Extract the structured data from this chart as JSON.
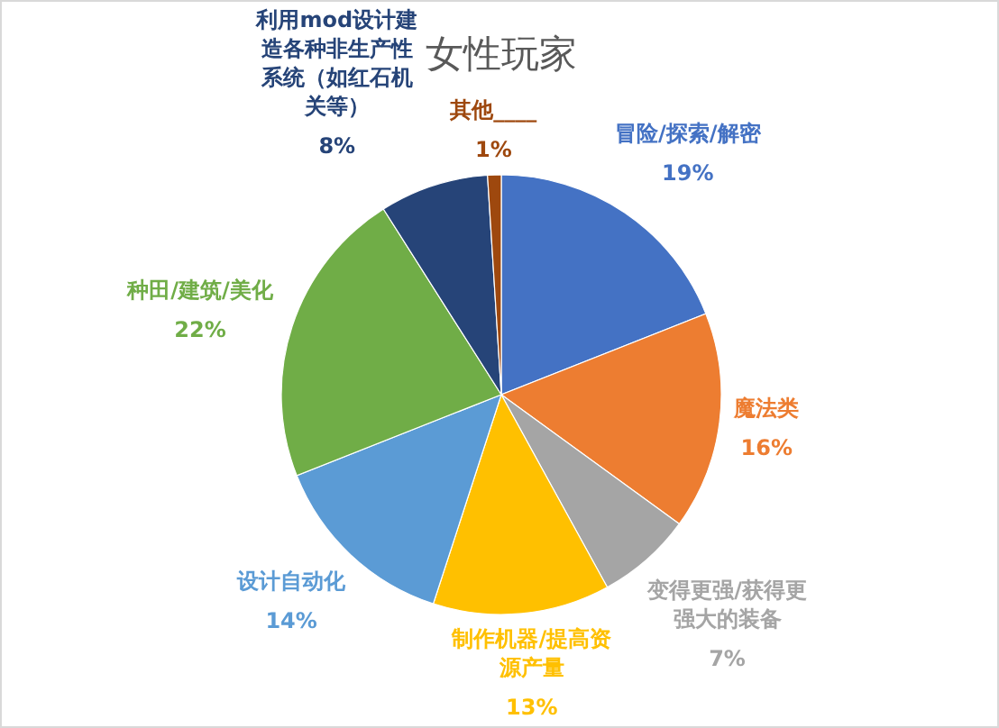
{
  "chart_data": {
    "type": "pie",
    "title": "女性玩家",
    "categories": [
      "冒险/探索/解密",
      "魔法类",
      "变得更强/获得更强大的装备",
      "制作机器/提高资源产量",
      "设计自动化",
      "种田/建筑/美化",
      "利用mod设计建造各种非生产性系统（如红石机关等）",
      "其他____"
    ],
    "values": [
      19,
      16,
      7,
      13,
      14,
      22,
      8,
      1
    ],
    "colors": [
      "#4472c4",
      "#ed7d31",
      "#a5a5a5",
      "#ffc000",
      "#5b9bd5",
      "#70ad47",
      "#264478",
      "#9e480e"
    ],
    "value_labels": [
      "19%",
      "16%",
      "7%",
      "13%",
      "14%",
      "22%",
      "8%",
      "1%"
    ]
  }
}
